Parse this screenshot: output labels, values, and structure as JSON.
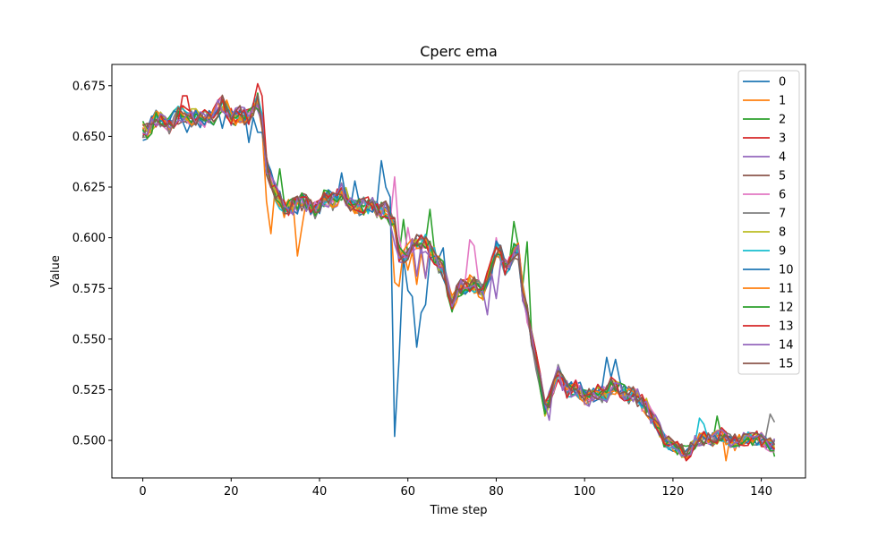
{
  "chart_data": {
    "type": "line",
    "title": "Cperc ema",
    "xlabel": "Time step",
    "ylabel": "Value",
    "xlim": [
      -7,
      150
    ],
    "ylim": [
      0.4815,
      0.6855
    ],
    "xticks": [
      0,
      20,
      40,
      60,
      80,
      100,
      120,
      140
    ],
    "yticks": [
      0.5,
      0.525,
      0.55,
      0.575,
      0.6,
      0.625,
      0.65,
      0.675
    ],
    "ytick_labels": [
      "0.500",
      "0.525",
      "0.550",
      "0.575",
      "0.600",
      "0.625",
      "0.650",
      "0.675"
    ],
    "grid": false,
    "legend_position": "top-right",
    "n_points": 144,
    "anchors": [
      [
        0,
        0.653
      ],
      [
        10,
        0.658
      ],
      [
        18,
        0.662
      ],
      [
        22,
        0.66
      ],
      [
        26,
        0.664
      ],
      [
        27,
        0.655
      ],
      [
        28,
        0.635
      ],
      [
        30,
        0.622
      ],
      [
        35,
        0.615
      ],
      [
        40,
        0.615
      ],
      [
        45,
        0.62
      ],
      [
        50,
        0.616
      ],
      [
        55,
        0.615
      ],
      [
        57,
        0.605
      ],
      [
        58,
        0.593
      ],
      [
        60,
        0.597
      ],
      [
        64,
        0.601
      ],
      [
        66,
        0.593
      ],
      [
        68,
        0.583
      ],
      [
        70,
        0.566
      ],
      [
        74,
        0.58
      ],
      [
        77,
        0.573
      ],
      [
        80,
        0.594
      ],
      [
        82,
        0.586
      ],
      [
        85,
        0.593
      ],
      [
        86,
        0.575
      ],
      [
        88,
        0.55
      ],
      [
        90,
        0.527
      ],
      [
        91,
        0.515
      ],
      [
        94,
        0.53
      ],
      [
        100,
        0.52
      ],
      [
        106,
        0.527
      ],
      [
        110,
        0.522
      ],
      [
        114,
        0.52
      ],
      [
        116,
        0.508
      ],
      [
        118,
        0.497
      ],
      [
        120,
        0.494
      ],
      [
        125,
        0.499
      ],
      [
        130,
        0.5
      ],
      [
        135,
        0.501
      ],
      [
        140,
        0.501
      ],
      [
        143,
        0.499
      ]
    ],
    "series": [
      {
        "name": "0",
        "color": "#1f77b4"
      },
      {
        "name": "1",
        "color": "#ff7f0e"
      },
      {
        "name": "2",
        "color": "#2ca02c"
      },
      {
        "name": "3",
        "color": "#d62728"
      },
      {
        "name": "4",
        "color": "#9467bd"
      },
      {
        "name": "5",
        "color": "#8c564b"
      },
      {
        "name": "6",
        "color": "#e377c2"
      },
      {
        "name": "7",
        "color": "#7f7f7f"
      },
      {
        "name": "8",
        "color": "#bcbd22"
      },
      {
        "name": "9",
        "color": "#17becf"
      },
      {
        "name": "10",
        "color": "#1f77b4"
      },
      {
        "name": "11",
        "color": "#ff7f0e"
      },
      {
        "name": "12",
        "color": "#2ca02c"
      },
      {
        "name": "13",
        "color": "#d62728"
      },
      {
        "name": "14",
        "color": "#9467bd"
      },
      {
        "name": "15",
        "color": "#8c564b"
      }
    ],
    "overrides": [
      {
        "series": 10,
        "points": [
          [
            0,
            0.648
          ],
          [
            10,
            0.652
          ],
          [
            18,
            0.654
          ],
          [
            24,
            0.647
          ],
          [
            26,
            0.652
          ],
          [
            27,
            0.652
          ],
          [
            45,
            0.632
          ],
          [
            48,
            0.628
          ],
          [
            54,
            0.638
          ],
          [
            55,
            0.625
          ],
          [
            56,
            0.62
          ],
          [
            57,
            0.502
          ],
          [
            58,
            0.54
          ],
          [
            60,
            0.574
          ],
          [
            61,
            0.571
          ],
          [
            62,
            0.546
          ],
          [
            63,
            0.563
          ],
          [
            64,
            0.567
          ],
          [
            65,
            0.59
          ],
          [
            68,
            0.595
          ],
          [
            105,
            0.541
          ],
          [
            107,
            0.54
          ]
        ]
      },
      {
        "series": 1,
        "points": [
          [
            28,
            0.618
          ],
          [
            29,
            0.602
          ],
          [
            32,
            0.61
          ],
          [
            35,
            0.591
          ],
          [
            36,
            0.605
          ],
          [
            40,
            0.615
          ],
          [
            57,
            0.578
          ],
          [
            58,
            0.576
          ],
          [
            60,
            0.584
          ],
          [
            62,
            0.577
          ],
          [
            64,
            0.58
          ],
          [
            132,
            0.49
          ],
          [
            134,
            0.495
          ]
        ]
      },
      {
        "series": 6,
        "points": [
          [
            57,
            0.63
          ],
          [
            58,
            0.601
          ],
          [
            60,
            0.605
          ],
          [
            74,
            0.599
          ],
          [
            75,
            0.596
          ],
          [
            80,
            0.6
          ],
          [
            114,
            0.52
          ]
        ]
      },
      {
        "series": 14,
        "points": [
          [
            57,
            0.597
          ],
          [
            60,
            0.59
          ],
          [
            62,
            0.581
          ],
          [
            64,
            0.58
          ],
          [
            78,
            0.562
          ],
          [
            80,
            0.57
          ],
          [
            92,
            0.51
          ]
        ]
      },
      {
        "series": 7,
        "points": [
          [
            142,
            0.513
          ],
          [
            143,
            0.509
          ]
        ]
      },
      {
        "series": 9,
        "points": [
          [
            126,
            0.511
          ],
          [
            127,
            0.508
          ]
        ]
      },
      {
        "series": 13,
        "points": [
          [
            26,
            0.676
          ],
          [
            27,
            0.67
          ],
          [
            9,
            0.67
          ],
          [
            10,
            0.67
          ]
        ]
      },
      {
        "series": 2,
        "points": [
          [
            31,
            0.634
          ],
          [
            59,
            0.609
          ],
          [
            65,
            0.614
          ],
          [
            84,
            0.608
          ],
          [
            87,
            0.598
          ],
          [
            130,
            0.512
          ],
          [
            143,
            0.492
          ]
        ]
      }
    ]
  }
}
